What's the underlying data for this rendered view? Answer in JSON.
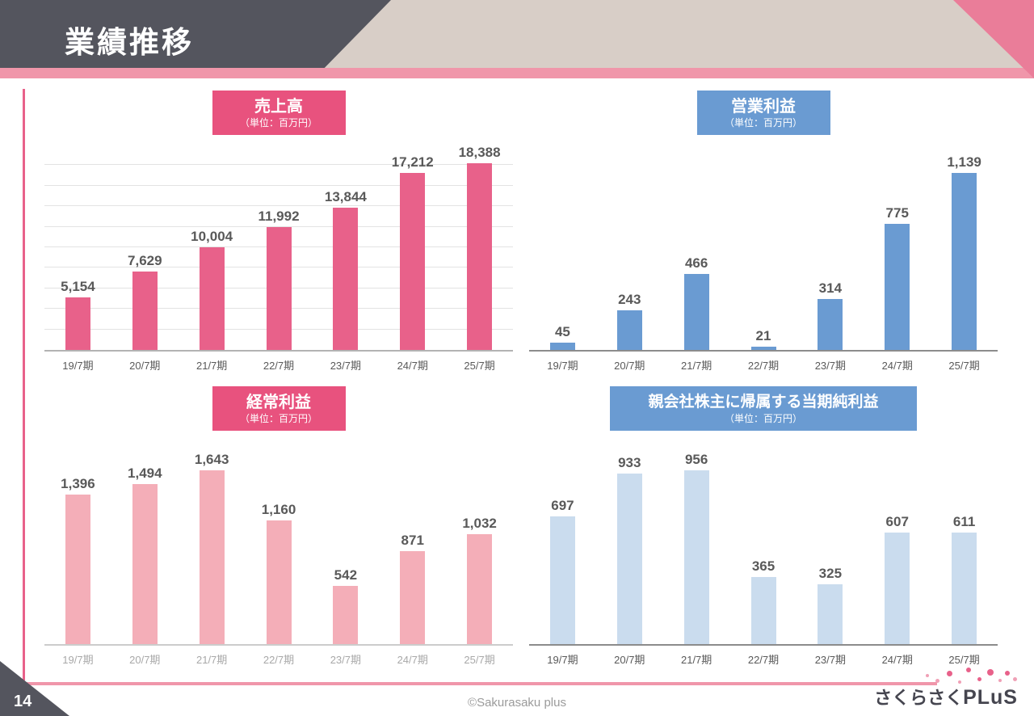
{
  "page": {
    "title": "業績推移",
    "page_number": "14",
    "copyright": "©Sakurasaku plus",
    "logo_jp": "さくらさく",
    "logo_en": "PLuS"
  },
  "colors": {
    "header_band": "#d8cec7",
    "header_ribbon": "#54555e",
    "accent_pink": "#f096aa",
    "strong_pink": "#e8618a",
    "strong_blue": "#6a9bd2",
    "light_pink": "#f4aeb8",
    "light_blue": "#cadcee"
  },
  "chart_data": [
    {
      "id": "revenue",
      "type": "bar",
      "title": "売上高",
      "subtitle": "（単位：百万円）",
      "categories": [
        "19/7期",
        "20/7期",
        "21/7期",
        "22/7期",
        "23/7期",
        "24/7期",
        "25/7期"
      ],
      "values": [
        5154,
        7629,
        10004,
        11992,
        13844,
        17212,
        18388
      ],
      "ylim": [
        0,
        20000
      ],
      "grid": true,
      "legend": "none",
      "bar_color": "#e8618a",
      "header_color": "#e8527e"
    },
    {
      "id": "operating-profit",
      "type": "bar",
      "title": "営業利益",
      "subtitle": "（単位：百万円）",
      "categories": [
        "19/7期",
        "20/7期",
        "21/7期",
        "22/7期",
        "23/7期",
        "24/7期",
        "25/7期"
      ],
      "values": [
        45,
        243,
        466,
        21,
        314,
        775,
        1139
      ],
      "ylim": [
        0,
        1200
      ],
      "grid": false,
      "legend": "none",
      "bar_color": "#6a9bd2",
      "header_color": "#6a9bd2"
    },
    {
      "id": "ordinary-profit",
      "type": "bar",
      "title": "経常利益",
      "subtitle": "（単位：百万円）",
      "categories": [
        "19/7期",
        "20/7期",
        "21/7期",
        "22/7期",
        "23/7期",
        "24/7期",
        "25/7期"
      ],
      "values": [
        1396,
        1494,
        1643,
        1160,
        542,
        871,
        1032
      ],
      "ylim": [
        0,
        1800
      ],
      "grid": false,
      "legend": "none",
      "bar_color": "#f4aeb8",
      "header_color": "#e8527e"
    },
    {
      "id": "net-income",
      "type": "bar",
      "title": "親会社株主に帰属する当期純利益",
      "subtitle": "（単位：百万円）",
      "categories": [
        "19/7期",
        "20/7期",
        "21/7期",
        "22/7期",
        "23/7期",
        "24/7期",
        "25/7期"
      ],
      "values": [
        697,
        933,
        956,
        365,
        325,
        607,
        611
      ],
      "ylim": [
        0,
        1050
      ],
      "grid": false,
      "legend": "none",
      "bar_color": "#cadcee",
      "header_color": "#6a9bd2"
    }
  ]
}
